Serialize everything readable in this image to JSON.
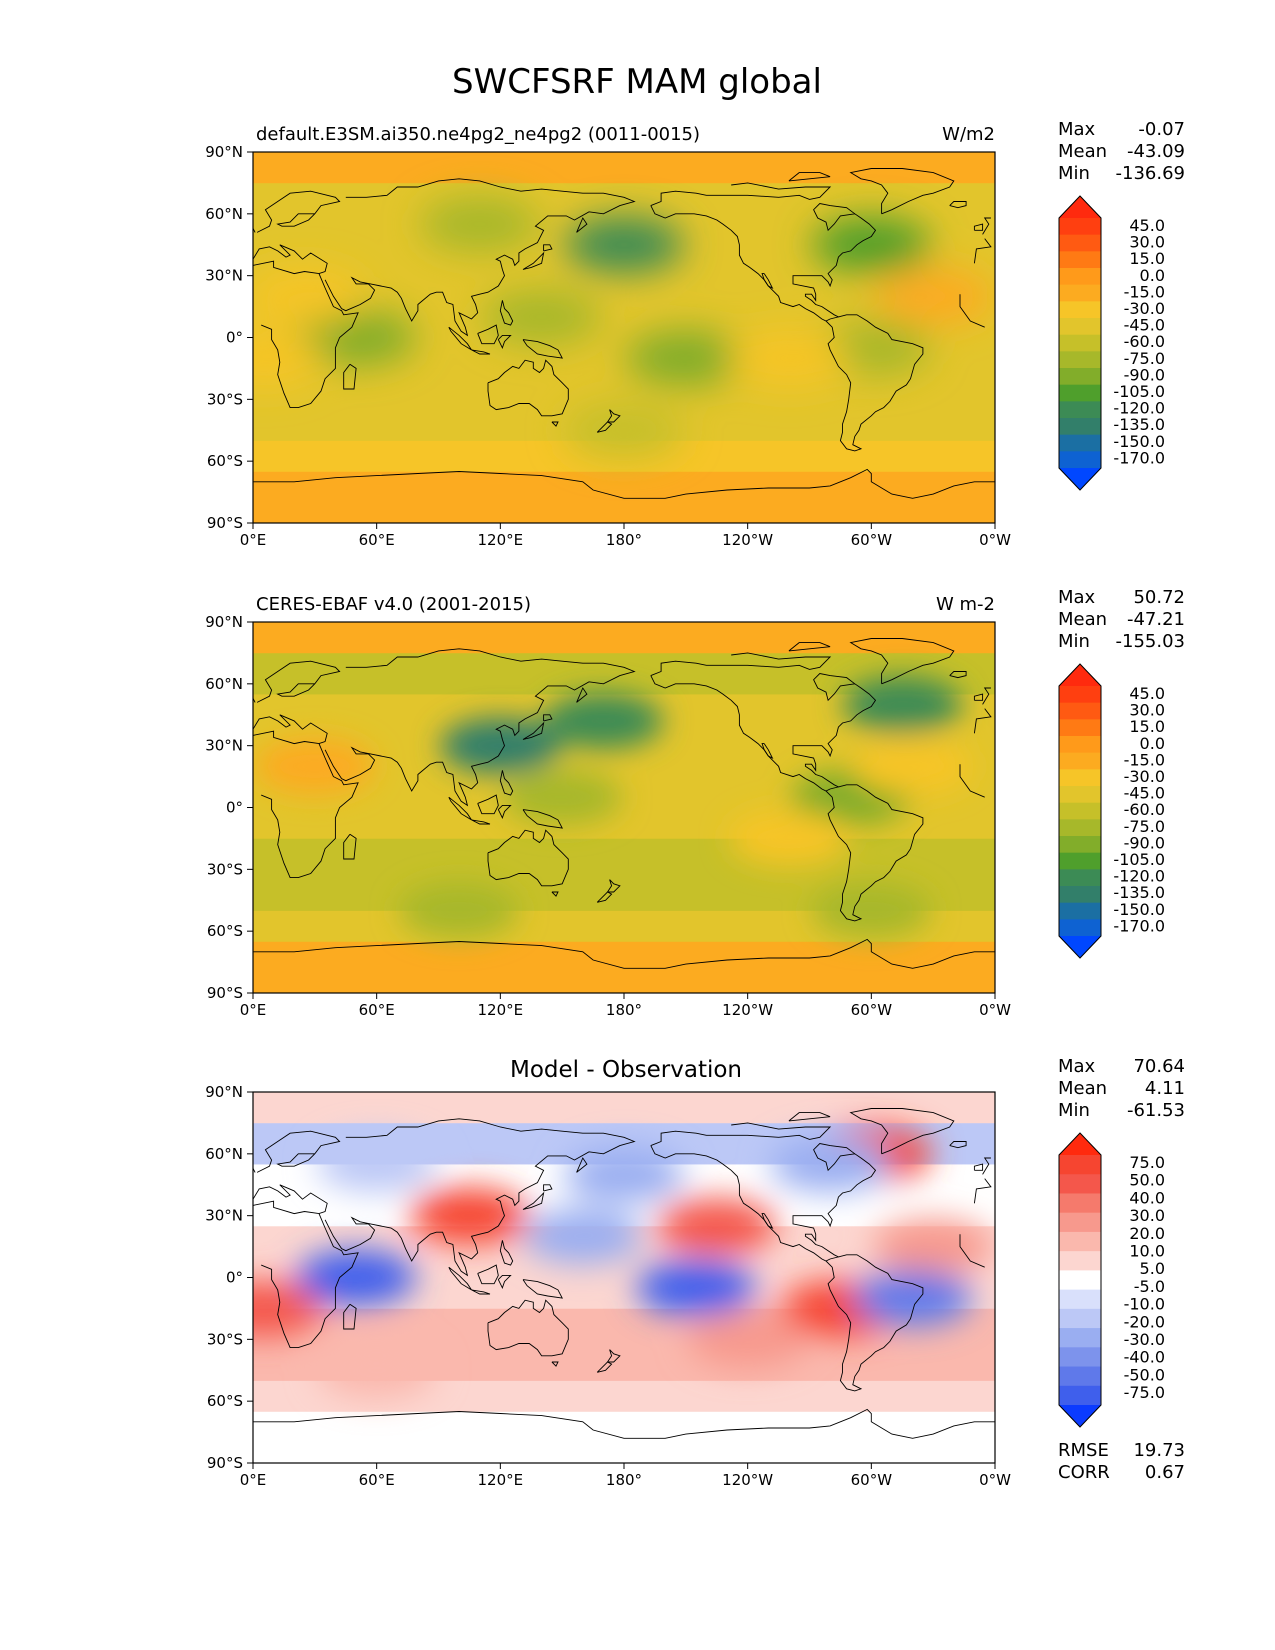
{
  "figure_title": "SWCFSRF MAM global",
  "lon_ticks": [
    "0°E",
    "60°E",
    "120°E",
    "180°",
    "120°W",
    "60°W",
    "0°W"
  ],
  "lat_ticks": [
    "90°N",
    "60°N",
    "30°N",
    "0°",
    "30°S",
    "60°S",
    "90°S"
  ],
  "chart_data": [
    {
      "type": "heatmap",
      "title": "default.E3SM.ai350.ne4pg2_ne4pg2 (0011-0015)",
      "units": "W/m2",
      "stats": [
        {
          "label": "Max",
          "value": "-0.07"
        },
        {
          "label": "Mean",
          "value": "-43.09"
        },
        {
          "label": "Min",
          "value": "-136.69"
        }
      ],
      "colorbar_ticks": [
        "45.0",
        "30.0",
        "15.0",
        "0.0",
        "-15.0",
        "-30.0",
        "-45.0",
        "-60.0",
        "-75.0",
        "-90.0",
        "-105.0",
        "-120.0",
        "-135.0",
        "-150.0",
        "-170.0"
      ],
      "colorbar_colors": [
        "#ff2a0e",
        "#ff3f10",
        "#ff5a12",
        "#ff7a14",
        "#ff9a1a",
        "#fcab20",
        "#f6c528",
        "#e2c52c",
        "#c6c029",
        "#a7b82a",
        "#82ad2a",
        "#4f9f2c",
        "#3c8b55",
        "#327f6a",
        "#1b6fa3",
        "#0e62d2",
        "#0047ff"
      ],
      "regions": [
        {
          "lat": 45,
          "lon": 180,
          "value": -120
        },
        {
          "lat": 45,
          "lon": 300,
          "value": -100
        },
        {
          "lat": 55,
          "lon": 110,
          "value": -70
        },
        {
          "lat": 10,
          "lon": 140,
          "value": -70
        },
        {
          "lat": 0,
          "lon": 50,
          "value": -80
        },
        {
          "lat": -10,
          "lon": 210,
          "value": -80
        },
        {
          "lat": -5,
          "lon": 300,
          "value": -70
        },
        {
          "lat": -45,
          "lon": 180,
          "value": -55
        },
        {
          "lat": 20,
          "lon": 25,
          "value": -20
        },
        {
          "lat": -10,
          "lon": 5,
          "value": -20
        },
        {
          "lat": 20,
          "lon": 330,
          "value": -15
        },
        {
          "lat": -10,
          "lon": 260,
          "value": -20
        }
      ]
    },
    {
      "type": "heatmap",
      "title": "CERES-EBAF v4.0 (2001-2015)",
      "units": "W m-2",
      "stats": [
        {
          "label": "Max",
          "value": "50.72"
        },
        {
          "label": "Mean",
          "value": "-47.21"
        },
        {
          "label": "Min",
          "value": "-155.03"
        }
      ],
      "colorbar_ticks": [
        "45.0",
        "30.0",
        "15.0",
        "0.0",
        "-15.0",
        "-30.0",
        "-45.0",
        "-60.0",
        "-75.0",
        "-90.0",
        "-105.0",
        "-120.0",
        "-135.0",
        "-150.0",
        "-170.0"
      ],
      "colorbar_colors": [
        "#ff2a0e",
        "#ff3f10",
        "#ff5a12",
        "#ff7a14",
        "#ff9a1a",
        "#fcab20",
        "#f6c528",
        "#e2c52c",
        "#c6c029",
        "#a7b82a",
        "#82ad2a",
        "#4f9f2c",
        "#3c8b55",
        "#327f6a",
        "#1b6fa3",
        "#0e62d2",
        "#0047ff"
      ],
      "regions": [
        {
          "lat": 42,
          "lon": 170,
          "value": -110
        },
        {
          "lat": 30,
          "lon": 120,
          "value": -135
        },
        {
          "lat": 50,
          "lon": 315,
          "value": -110
        },
        {
          "lat": 5,
          "lon": 290,
          "value": -90
        },
        {
          "lat": -50,
          "lon": 100,
          "value": -70
        },
        {
          "lat": -50,
          "lon": 300,
          "value": -70
        },
        {
          "lat": 5,
          "lon": 150,
          "value": -75
        },
        {
          "lat": 20,
          "lon": 30,
          "value": -15
        },
        {
          "lat": 20,
          "lon": 320,
          "value": -20
        },
        {
          "lat": -15,
          "lon": 260,
          "value": -25
        }
      ]
    },
    {
      "type": "heatmap",
      "title": "Model - Observation",
      "units": "",
      "stats": [
        {
          "label": "Max",
          "value": "70.64"
        },
        {
          "label": "Mean",
          "value": "4.11"
        },
        {
          "label": "Min",
          "value": "-61.53"
        }
      ],
      "extra_stats": [
        {
          "label": "RMSE",
          "value": "19.73"
        },
        {
          "label": "CORR",
          "value": "0.67"
        }
      ],
      "colorbar_ticks": [
        "75.0",
        "50.0",
        "40.0",
        "30.0",
        "20.0",
        "10.0",
        "5.0",
        "-5.0",
        "-10.0",
        "-20.0",
        "-30.0",
        "-40.0",
        "-50.0",
        "-75.0"
      ],
      "colorbar_colors": [
        "#ff2a0e",
        "#f64530",
        "#f4574b",
        "#f57a6c",
        "#f7998d",
        "#fab8ad",
        "#fcd6d0",
        "#ffffff",
        "#d9e0fb",
        "#bcc8f6",
        "#9aaef1",
        "#7d93ec",
        "#5f79ea",
        "#3f5fec",
        "#0b3bff"
      ],
      "regions": [
        {
          "lat": 30,
          "lon": 105,
          "value": 60
        },
        {
          "lat": 25,
          "lon": 225,
          "value": 45
        },
        {
          "lat": -15,
          "lon": 285,
          "value": 50
        },
        {
          "lat": -15,
          "lon": 5,
          "value": 40
        },
        {
          "lat": 60,
          "lon": 300,
          "value": 50
        },
        {
          "lat": -30,
          "lon": 240,
          "value": 20
        },
        {
          "lat": -45,
          "lon": 60,
          "value": 12
        },
        {
          "lat": 15,
          "lon": 330,
          "value": 25
        },
        {
          "lat": 0,
          "lon": 50,
          "value": -55
        },
        {
          "lat": -5,
          "lon": 215,
          "value": -55
        },
        {
          "lat": -10,
          "lon": 320,
          "value": -50
        },
        {
          "lat": 50,
          "lon": 180,
          "value": -25
        },
        {
          "lat": 55,
          "lon": 60,
          "value": -20
        },
        {
          "lat": 55,
          "lon": 280,
          "value": -25
        },
        {
          "lat": 20,
          "lon": 160,
          "value": -25
        }
      ]
    }
  ]
}
